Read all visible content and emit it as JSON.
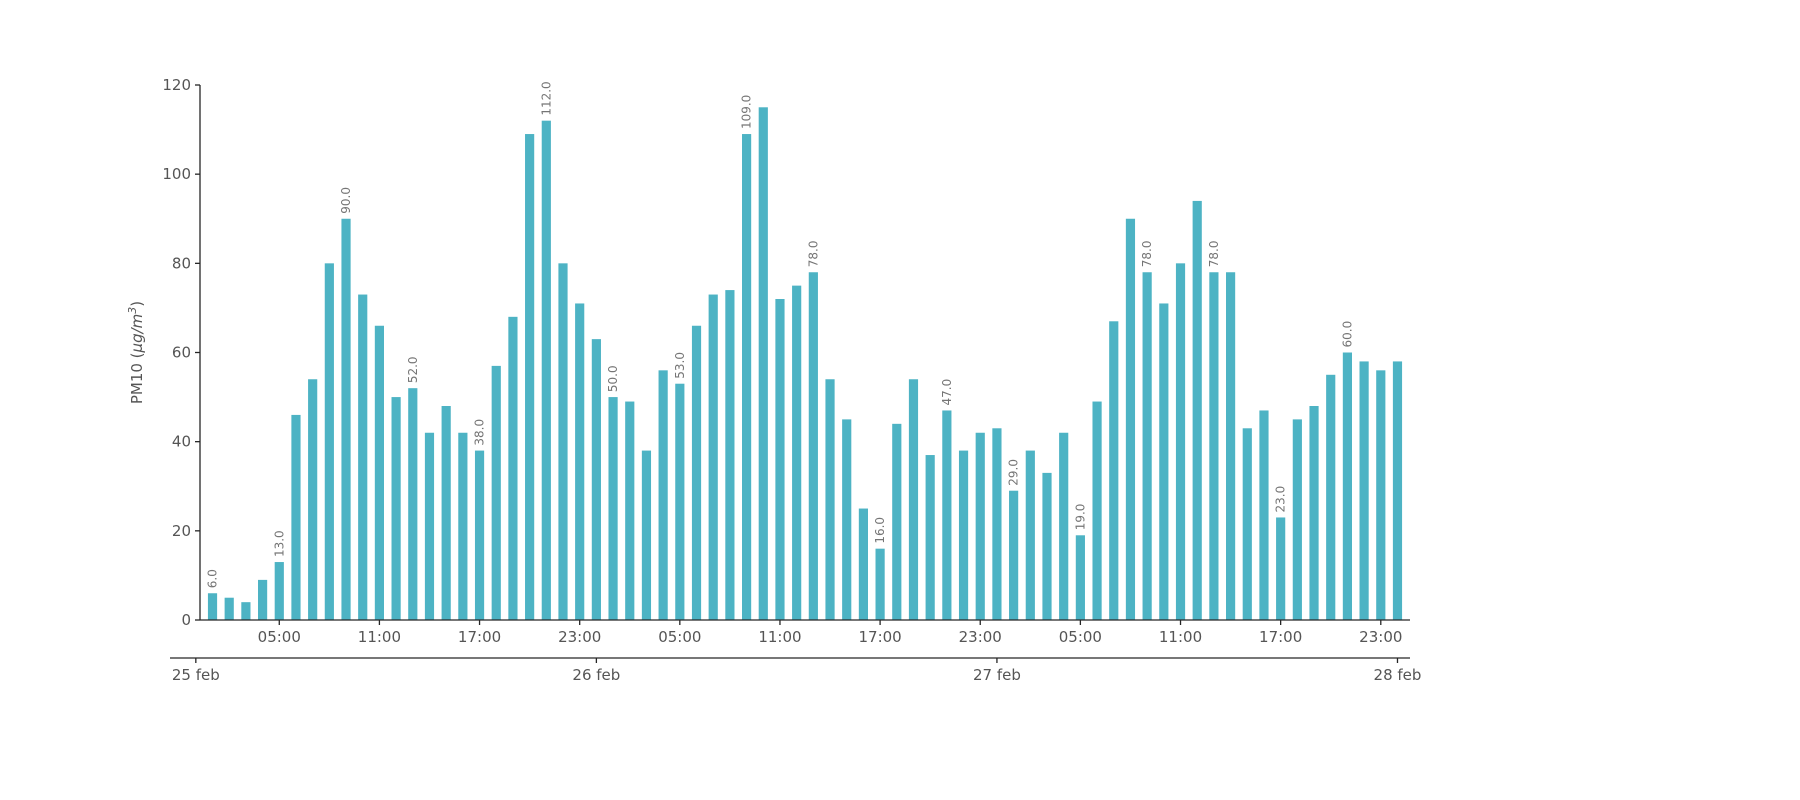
{
  "figure": {
    "background": "#ffffff"
  },
  "chart_data": {
    "type": "bar",
    "title": "",
    "ylabel": "PM10 (µg/m³)",
    "ylabel_parts": {
      "prefix": "PM10 (",
      "italic": "µg/m",
      "sup": "3",
      "suffix": ")"
    },
    "ylim": [
      0,
      120
    ],
    "yticks": [
      0,
      20,
      40,
      60,
      80,
      100,
      120
    ],
    "x_unit": "hours",
    "x_range_hours": [
      0.25,
      72.75
    ],
    "x_description": "hourly bars from 25 feb 01:00 through 28 feb 00:00",
    "grid": false,
    "legend": "none",
    "bar_color": "#4db3c4",
    "axis_color": "#262626",
    "tick_label_color": "#555555",
    "annotation_color": "#757575",
    "values": [
      6,
      5,
      4,
      9,
      13,
      46,
      54,
      80,
      90,
      73,
      66,
      50,
      52,
      42,
      48,
      42,
      38,
      57,
      68,
      109,
      112,
      80,
      71,
      63,
      50,
      49,
      38,
      56,
      53,
      66,
      73,
      74,
      109,
      115,
      72,
      75,
      78,
      54,
      45,
      25,
      16,
      44,
      54,
      37,
      47,
      38,
      42,
      43,
      29,
      38,
      33,
      42,
      19,
      49,
      67,
      90,
      78,
      71,
      80,
      94,
      78,
      78,
      43,
      47,
      23,
      45,
      48,
      55,
      60,
      58,
      56,
      58
    ],
    "annotations": [
      {
        "i": 0,
        "text": "6.0"
      },
      {
        "i": 4,
        "text": "13.0"
      },
      {
        "i": 8,
        "text": "90.0"
      },
      {
        "i": 12,
        "text": "52.0"
      },
      {
        "i": 16,
        "text": "38.0"
      },
      {
        "i": 20,
        "text": "112.0"
      },
      {
        "i": 24,
        "text": "50.0"
      },
      {
        "i": 28,
        "text": "53.0"
      },
      {
        "i": 32,
        "text": "109.0"
      },
      {
        "i": 36,
        "text": "78.0"
      },
      {
        "i": 40,
        "text": "16.0"
      },
      {
        "i": 44,
        "text": "47.0"
      },
      {
        "i": 48,
        "text": "29.0"
      },
      {
        "i": 52,
        "text": "19.0"
      },
      {
        "i": 56,
        "text": "78.0"
      },
      {
        "i": 60,
        "text": "78.0"
      },
      {
        "i": 64,
        "text": "23.0"
      },
      {
        "i": 68,
        "text": "60.0"
      }
    ],
    "time_ticks": [
      {
        "hour": 5,
        "label": "05:00"
      },
      {
        "hour": 11,
        "label": "11:00"
      },
      {
        "hour": 17,
        "label": "17:00"
      },
      {
        "hour": 23,
        "label": "23:00"
      },
      {
        "hour": 29,
        "label": "05:00"
      },
      {
        "hour": 35,
        "label": "11:00"
      },
      {
        "hour": 41,
        "label": "17:00"
      },
      {
        "hour": 47,
        "label": "23:00"
      },
      {
        "hour": 53,
        "label": "05:00"
      },
      {
        "hour": 59,
        "label": "11:00"
      },
      {
        "hour": 65,
        "label": "17:00"
      },
      {
        "hour": 71,
        "label": "23:00"
      }
    ],
    "date_ticks": [
      {
        "hour": 0,
        "label": "25 feb"
      },
      {
        "hour": 24,
        "label": "26 feb"
      },
      {
        "hour": 48,
        "label": "27 feb"
      },
      {
        "hour": 72,
        "label": "28 feb"
      }
    ]
  }
}
